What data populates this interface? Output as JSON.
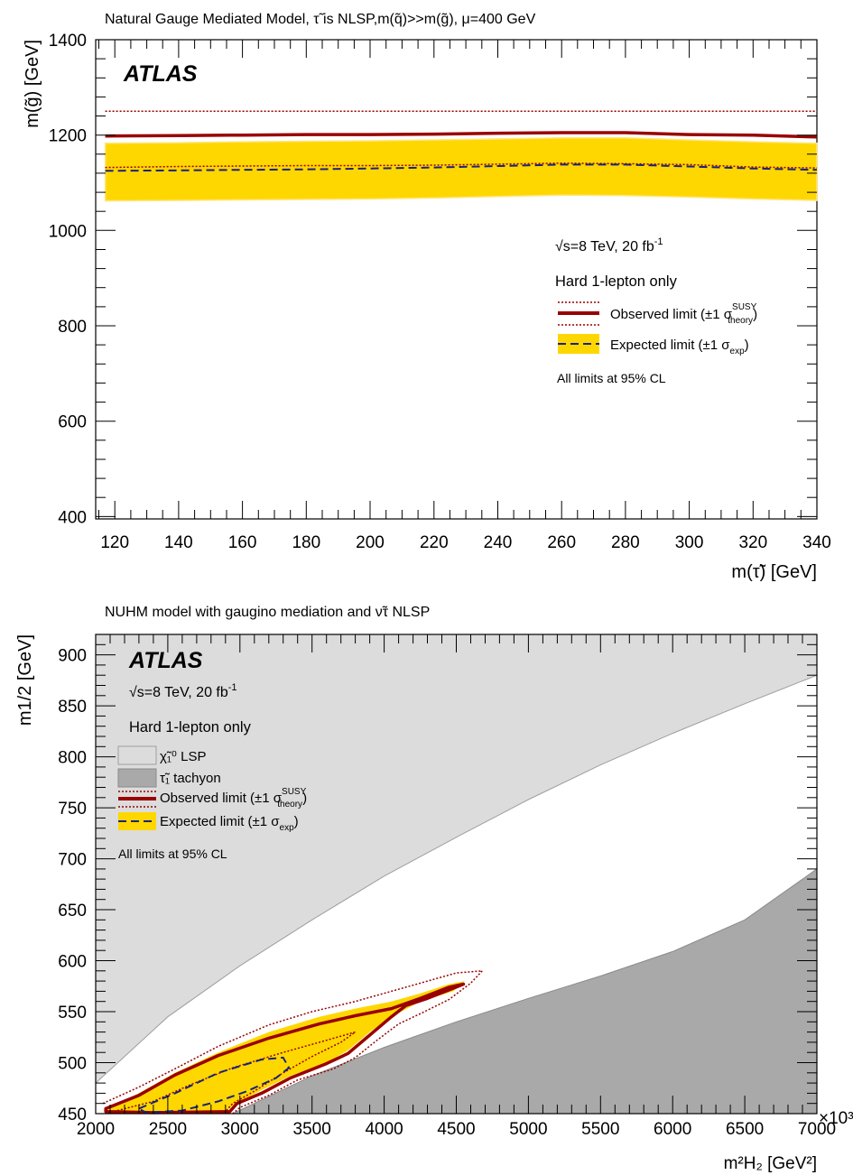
{
  "chart_data": [
    {
      "type": "line",
      "title": "Natural Gauge Mediated Model, τ̃ is NLSP,m(q̃)>>m(g̃),  μ=400 GeV",
      "brand": "ATLAS",
      "xlabel": "m(τ̃) [GeV]",
      "ylabel": "m(g̃) [GeV]",
      "xlim": [
        114,
        340
      ],
      "ylim": [
        395,
        1400
      ],
      "xticks": [
        120,
        140,
        160,
        180,
        200,
        220,
        240,
        260,
        280,
        300,
        320,
        340
      ],
      "yticks": [
        400,
        600,
        800,
        1000,
        1200,
        1400
      ],
      "grid": false,
      "legend_position": "center-right",
      "legend": {
        "energy_main": "√s=8 TeV, 20 fb",
        "energy_sup": "-1",
        "selection": "Hard 1-lepton only",
        "observed_main": "Observed limit (±1 σ",
        "observed_sup": "SUSY",
        "observed_sub": "theory",
        "observed_close": ")",
        "expected_main": "Expected limit (±1 σ",
        "expected_sub": "exp",
        "expected_close": ")",
        "cl": "All limits at 95% CL"
      },
      "x": [
        117,
        140,
        160,
        180,
        200,
        220,
        240,
        260,
        280,
        300,
        320,
        340
      ],
      "series": [
        {
          "name": "Observed limit",
          "style": "observed",
          "values": [
            1198,
            1199,
            1200,
            1201,
            1201,
            1202,
            1204,
            1205,
            1205,
            1201,
            1200,
            1196
          ]
        },
        {
          "name": "Observed +1σ theory",
          "style": "theory",
          "values": [
            1250,
            1250,
            1250,
            1250,
            1250,
            1250,
            1250,
            1250,
            1250,
            1250,
            1250,
            1250
          ]
        },
        {
          "name": "Observed -1σ theory",
          "style": "theory",
          "values": [
            1132,
            1134,
            1135,
            1136,
            1136,
            1137,
            1139,
            1141,
            1140,
            1138,
            1133,
            1131
          ]
        },
        {
          "name": "Expected limit",
          "style": "expected",
          "values": [
            1125,
            1126,
            1127,
            1128,
            1130,
            1132,
            1135,
            1138,
            1138,
            1134,
            1130,
            1127
          ]
        }
      ],
      "band": {
        "name": "Expected ±1σ exp",
        "upper": [
          1183,
          1184,
          1186,
          1187,
          1188,
          1190,
          1192,
          1194,
          1194,
          1190,
          1186,
          1183
        ],
        "lower": [
          1062,
          1063,
          1064,
          1065,
          1066,
          1068,
          1071,
          1074,
          1073,
          1070,
          1066,
          1063
        ]
      },
      "colors": {
        "observed": "#990000",
        "expected": "#1a237e",
        "band": "#ffd700",
        "band_edge": "#ffe680"
      }
    },
    {
      "type": "area",
      "title": "NUHM model with gaugino mediation and ν̃τ NLSP",
      "brand": "ATLAS",
      "xlabel": "m²H₂ [GeV²]",
      "ylabel": "m1/2 [GeV]",
      "xlim": [
        2000,
        7000
      ],
      "ylim": [
        450,
        920
      ],
      "x_scale_factor": "×10³",
      "xticks": [
        2000,
        2500,
        3000,
        3500,
        4000,
        4500,
        5000,
        5500,
        6000,
        6500,
        7000
      ],
      "yticks": [
        450,
        500,
        550,
        600,
        650,
        700,
        750,
        800,
        850,
        900
      ],
      "grid": false,
      "legend_position": "top-left",
      "legend": {
        "energy_main": "√s=8 TeV, 20 fb",
        "energy_sup": "-1",
        "selection": "Hard 1-lepton only",
        "lsp": "χ̃₁⁰ LSP",
        "tachyon": "τ̃₁ tachyon",
        "observed_main": "Observed limit (±1 σ",
        "observed_sup": "SUSY",
        "observed_sub": "theory",
        "observed_close": ")",
        "expected_main": "Expected limit (±1 σ",
        "expected_sub": "exp",
        "expected_close": ")",
        "cl": "All limits at 95% CL"
      },
      "regions": {
        "lsp_boundary": [
          [
            2000,
            480
          ],
          [
            2500,
            545
          ],
          [
            3000,
            595
          ],
          [
            3500,
            640
          ],
          [
            4000,
            683
          ],
          [
            4500,
            721
          ],
          [
            5000,
            758
          ],
          [
            5500,
            792
          ],
          [
            6000,
            823
          ],
          [
            6500,
            852
          ],
          [
            7000,
            880
          ]
        ],
        "tachyon_boundary": [
          [
            2950,
            450
          ],
          [
            3500,
            487
          ],
          [
            4000,
            515
          ],
          [
            4500,
            540
          ],
          [
            5000,
            563
          ],
          [
            5500,
            585
          ],
          [
            6000,
            609
          ],
          [
            6500,
            640
          ],
          [
            7000,
            690
          ]
        ]
      },
      "contours": {
        "band": [
          [
            2080,
            455
          ],
          [
            2300,
            470
          ],
          [
            2550,
            490
          ],
          [
            2850,
            510
          ],
          [
            3200,
            530
          ],
          [
            3550,
            545
          ],
          [
            3800,
            553
          ],
          [
            4050,
            560
          ],
          [
            4250,
            568
          ],
          [
            4450,
            577
          ],
          [
            4560,
            580
          ],
          [
            4480,
            570
          ],
          [
            4250,
            560
          ],
          [
            4050,
            545
          ],
          [
            3900,
            530
          ],
          [
            3750,
            512
          ],
          [
            3600,
            500
          ],
          [
            3350,
            487
          ],
          [
            3150,
            473
          ],
          [
            2950,
            458
          ],
          [
            2900,
            451
          ],
          [
            2300,
            451
          ],
          [
            2080,
            452
          ]
        ],
        "observed": [
          [
            2070,
            455
          ],
          [
            2300,
            468
          ],
          [
            2550,
            488
          ],
          [
            2850,
            507
          ],
          [
            3200,
            524
          ],
          [
            3550,
            538
          ],
          [
            3800,
            546
          ],
          [
            4050,
            553
          ],
          [
            4250,
            563
          ],
          [
            4450,
            574
          ],
          [
            4550,
            577
          ],
          [
            4480,
            573
          ],
          [
            4300,
            563
          ],
          [
            4150,
            556
          ],
          [
            4050,
            545
          ],
          [
            3900,
            527
          ],
          [
            3750,
            509
          ],
          [
            3600,
            499
          ],
          [
            3350,
            485
          ],
          [
            3150,
            470
          ],
          [
            2980,
            460
          ],
          [
            2930,
            452
          ],
          [
            2400,
            451
          ],
          [
            2070,
            452
          ]
        ],
        "theory_up": [
          [
            2050,
            460
          ],
          [
            2300,
            476
          ],
          [
            2550,
            494
          ],
          [
            2850,
            516
          ],
          [
            3200,
            537
          ],
          [
            3500,
            550
          ],
          [
            3800,
            560
          ],
          [
            4050,
            570
          ],
          [
            4250,
            578
          ],
          [
            4500,
            588
          ],
          [
            4680,
            590
          ],
          [
            4600,
            578
          ],
          [
            4450,
            562
          ],
          [
            4250,
            548
          ],
          [
            4100,
            538
          ],
          [
            3950,
            522
          ],
          [
            3800,
            505
          ],
          [
            3650,
            494
          ],
          [
            3400,
            483
          ],
          [
            3200,
            468
          ],
          [
            3000,
            456
          ],
          [
            2950,
            450
          ]
        ],
        "theory_down": [
          [
            2150,
            453
          ],
          [
            2400,
            462
          ],
          [
            2650,
            478
          ],
          [
            2950,
            495
          ],
          [
            3300,
            510
          ],
          [
            3600,
            522
          ],
          [
            3800,
            530
          ],
          [
            3700,
            520
          ],
          [
            3500,
            506
          ],
          [
            3300,
            490
          ],
          [
            3100,
            472
          ],
          [
            2950,
            460
          ],
          [
            2900,
            452
          ]
        ],
        "expected": [
          [
            2300,
            455
          ],
          [
            2550,
            470
          ],
          [
            2850,
            490
          ],
          [
            3150,
            503
          ],
          [
            3300,
            505
          ],
          [
            3340,
            495
          ],
          [
            3250,
            485
          ],
          [
            3050,
            472
          ],
          [
            2850,
            462
          ],
          [
            2600,
            453
          ],
          [
            2350,
            451
          ]
        ]
      },
      "colors": {
        "lsp": "#dcdcdc",
        "lsp_edge": "#9e9e9e",
        "tachyon": "#a9a9a9",
        "observed": "#990000",
        "expected": "#1a237e",
        "band": "#ffd700"
      }
    }
  ]
}
